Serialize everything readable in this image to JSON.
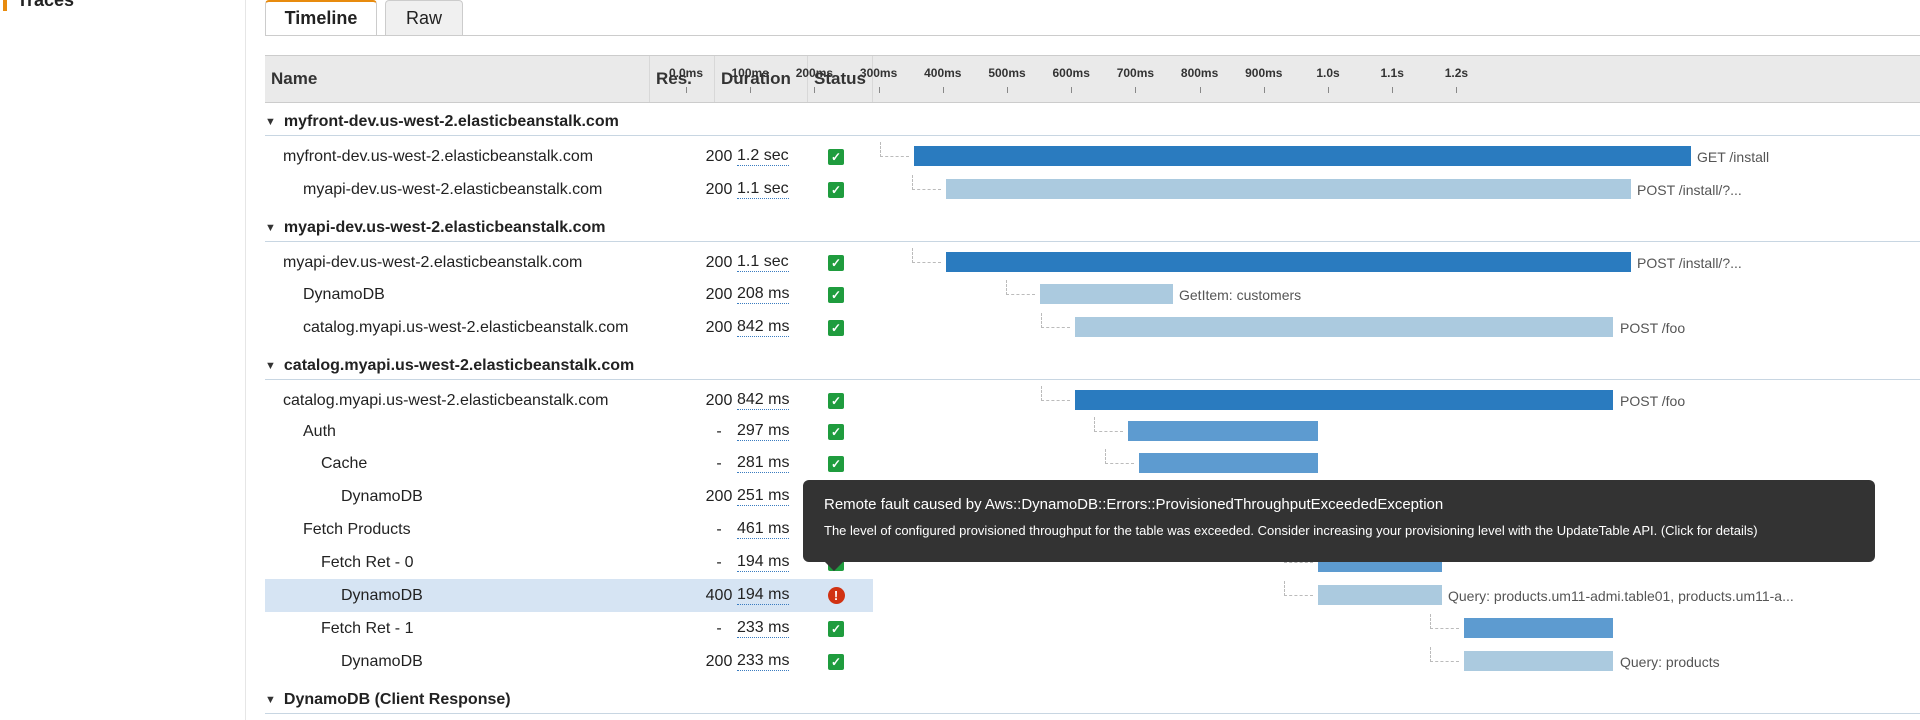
{
  "sidebar": {
    "item_label": "Traces"
  },
  "tabs": [
    {
      "label": "Timeline",
      "active": true
    },
    {
      "label": "Raw",
      "active": false
    }
  ],
  "columns": {
    "name": "Name",
    "res": "Res.",
    "duration": "Duration",
    "status": "Status"
  },
  "timeline_ticks": [
    "0.0ms",
    "100ms",
    "200ms",
    "300ms",
    "400ms",
    "500ms",
    "600ms",
    "700ms",
    "800ms",
    "900ms",
    "1.0s",
    "1.1s",
    "1.2s"
  ],
  "groups": [
    {
      "title": "myfront-dev.us-west-2.elasticbeanstalk.com"
    },
    {
      "title": "myapi-dev.us-west-2.elasticbeanstalk.com"
    },
    {
      "title": "catalog.myapi.us-west-2.elasticbeanstalk.com"
    },
    {
      "title": "DynamoDB (Client Response)"
    }
  ],
  "rows": [
    {
      "name": "myfront-dev.us-west-2.elasticbeanstalk.com",
      "res": "200",
      "duration": "1.2 sec",
      "status": "ok",
      "bar_label": "GET /install"
    },
    {
      "name": "myapi-dev.us-west-2.elasticbeanstalk.com",
      "res": "200",
      "duration": "1.1 sec",
      "status": "ok",
      "bar_label": "POST /install/?..."
    },
    {
      "name": "myapi-dev.us-west-2.elasticbeanstalk.com",
      "res": "200",
      "duration": "1.1 sec",
      "status": "ok",
      "bar_label": "POST /install/?..."
    },
    {
      "name": "DynamoDB",
      "res": "200",
      "duration": "208 ms",
      "status": "ok",
      "bar_label": "GetItem: customers"
    },
    {
      "name": "catalog.myapi.us-west-2.elasticbeanstalk.com",
      "res": "200",
      "duration": "842 ms",
      "status": "ok",
      "bar_label": "POST /foo"
    },
    {
      "name": "catalog.myapi.us-west-2.elasticbeanstalk.com",
      "res": "200",
      "duration": "842 ms",
      "status": "ok",
      "bar_label": "POST /foo"
    },
    {
      "name": "Auth",
      "res": "-",
      "duration": "297 ms",
      "status": "ok",
      "bar_label": ""
    },
    {
      "name": "Cache",
      "res": "-",
      "duration": "281 ms",
      "status": "ok",
      "bar_label": ""
    },
    {
      "name": "DynamoDB",
      "res": "200",
      "duration": "251 ms",
      "status": "ok",
      "bar_label": ""
    },
    {
      "name": "Fetch Products",
      "res": "-",
      "duration": "461 ms",
      "status": "ok",
      "bar_label": ""
    },
    {
      "name": "Fetch Ret - 0",
      "res": "-",
      "duration": "194 ms",
      "status": "ok",
      "bar_label": ""
    },
    {
      "name": "DynamoDB",
      "res": "400",
      "duration": "194 ms",
      "status": "error",
      "bar_label": "Query: products.um11-admi.table01, products.um11-a..."
    },
    {
      "name": "Fetch Ret - 1",
      "res": "-",
      "duration": "233 ms",
      "status": "ok",
      "bar_label": ""
    },
    {
      "name": "DynamoDB",
      "res": "200",
      "duration": "233 ms",
      "status": "ok",
      "bar_label": "Query: products"
    }
  ],
  "tooltip": {
    "title": "Remote fault caused by Aws::DynamoDB::Errors::ProvisionedThroughputExceededException",
    "body": "The level of configured provisioned throughput for the table was exceeded. Consider increasing your provisioning level with the UpdateTable API. (Click for details)"
  },
  "colors": {
    "accent": "#e88b0e",
    "bar_dark": "#2a7bbf",
    "bar_mid": "#5d9bd0",
    "bar_light": "#abcadf",
    "ok": "#1f9c3e",
    "error": "#d13212"
  }
}
